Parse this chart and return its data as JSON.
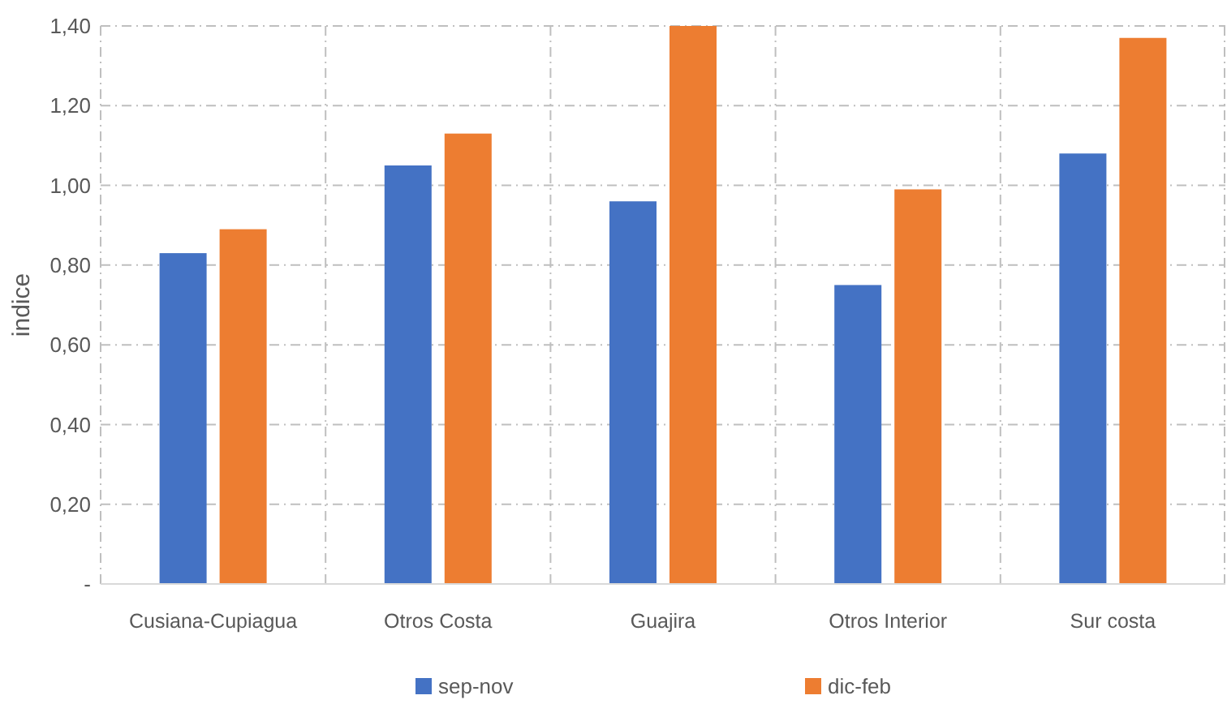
{
  "chart_data": {
    "type": "bar",
    "ylabel": "indice",
    "categories": [
      "Cusiana-Cupiagua",
      "Otros Costa",
      "Guajira",
      "Otros Interior",
      "Sur costa"
    ],
    "series": [
      {
        "name": "sep-nov",
        "color": "#4472c4",
        "values": [
          0.83,
          1.05,
          0.96,
          0.75,
          1.08
        ]
      },
      {
        "name": "dic-feb",
        "color": "#ed7d31",
        "values": [
          0.89,
          1.13,
          1.4,
          0.99,
          1.37
        ]
      }
    ],
    "ylim": [
      0,
      1.4
    ],
    "yticks": [
      {
        "value": 0,
        "label": "-"
      },
      {
        "value": 0.2,
        "label": "0,20"
      },
      {
        "value": 0.4,
        "label": "0,40"
      },
      {
        "value": 0.6,
        "label": "0,60"
      },
      {
        "value": 0.8,
        "label": "0,80"
      },
      {
        "value": 1,
        "label": "1,00"
      },
      {
        "value": 1.2,
        "label": "1,20"
      },
      {
        "value": 1.4,
        "label": "1,40"
      }
    ],
    "grid": true,
    "legend": "bottom"
  }
}
